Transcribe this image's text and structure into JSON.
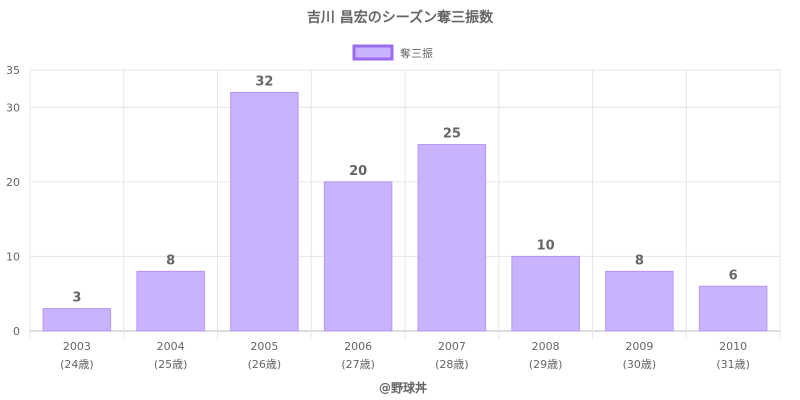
{
  "chart_data": {
    "type": "bar",
    "title": "吉川 昌宏のシーズン奪三振数",
    "categories": [
      "2003",
      "2004",
      "2005",
      "2006",
      "2007",
      "2008",
      "2009",
      "2010"
    ],
    "category_sublabels": [
      "(24歳)",
      "(25歳)",
      "(26歳)",
      "(27歳)",
      "(28歳)",
      "(29歳)",
      "(30歳)",
      "(31歳)"
    ],
    "series": [
      {
        "name": "奪三振",
        "values": [
          3,
          8,
          32,
          20,
          25,
          10,
          8,
          6
        ]
      }
    ],
    "ylim": [
      0,
      35
    ],
    "yticks": [
      0,
      10,
      20,
      30,
      35
    ],
    "grid": true,
    "legend_position": "top-center",
    "xlabel": "",
    "ylabel": "",
    "colors": {
      "bar_fill": "#c9b3ff",
      "bar_stroke": "#b794f6",
      "legend_stroke": "#9b6cf0",
      "text": "#666666",
      "grid": "#e6e6e6"
    }
  },
  "credit": "@野球丼"
}
